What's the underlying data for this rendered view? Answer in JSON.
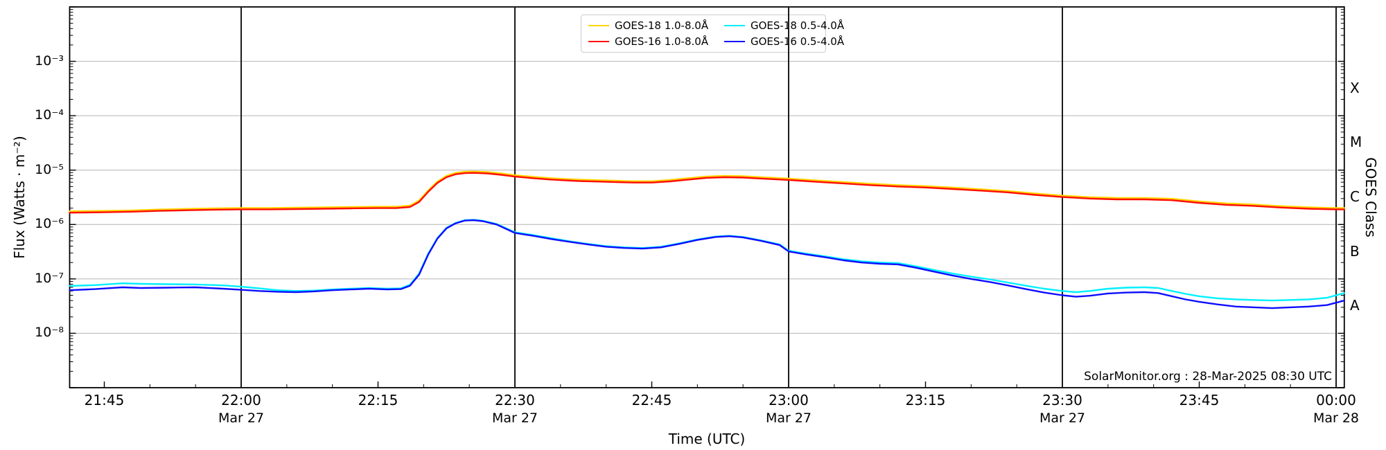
{
  "chart_data": {
    "type": "line",
    "xlabel": "Time (UTC)",
    "ylabel_left": "Flux (Watts · m⁻²)",
    "ylabel_right": "GOES Class",
    "annotation": "SolarMonitor.org : 28-Mar-2025 08:30 UTC",
    "grid": {
      "horizontal": true,
      "vertical_halfhour_lines": true
    },
    "legend_position": "top-center",
    "x_axis_note": "t = minutes relative to 22:00 UTC on Mar 27 2025",
    "xlim_t": [
      -18.8,
      120.9
    ],
    "ylim_log10": [
      -9,
      -2
    ],
    "x_major_ticks": [
      {
        "t": -15,
        "label": "21:45",
        "date": ""
      },
      {
        "t": 0,
        "label": "22:00",
        "date": "Mar 27"
      },
      {
        "t": 15,
        "label": "22:15",
        "date": ""
      },
      {
        "t": 30,
        "label": "22:30",
        "date": "Mar 27"
      },
      {
        "t": 45,
        "label": "22:45",
        "date": ""
      },
      {
        "t": 60,
        "label": "23:00",
        "date": "Mar 27"
      },
      {
        "t": 75,
        "label": "23:15",
        "date": ""
      },
      {
        "t": 90,
        "label": "23:30",
        "date": "Mar 27"
      },
      {
        "t": 105,
        "label": "23:45",
        "date": ""
      },
      {
        "t": 120,
        "label": "00:00",
        "date": "Mar 28"
      }
    ],
    "x_minor_step_min": 5,
    "vlines_t": [
      0,
      30,
      60,
      90,
      120
    ],
    "y_major_ticks": [
      {
        "exp": -3,
        "label": "10⁻³"
      },
      {
        "exp": -4,
        "label": "10⁻⁴"
      },
      {
        "exp": -5,
        "label": "10⁻⁵"
      },
      {
        "exp": -6,
        "label": "10⁻⁶"
      },
      {
        "exp": -7,
        "label": "10⁻⁷"
      },
      {
        "exp": -8,
        "label": "10⁻⁸"
      }
    ],
    "goes_classes": [
      {
        "label": "X",
        "log_flux": -3.5
      },
      {
        "label": "M",
        "log_flux": -4.5
      },
      {
        "label": "C",
        "log_flux": -5.5
      },
      {
        "label": "B",
        "log_flux": -6.5
      },
      {
        "label": "A",
        "log_flux": -7.5
      }
    ],
    "colors": {
      "grid_h": "#b4b4b4",
      "vline": "#1a1a1a",
      "spine": "#000000",
      "legend_border": "#cccccc"
    },
    "series": [
      {
        "name": "GOES-18 1.0-8.0Å",
        "color": "#ffd400",
        "points": [
          [
            -18.8,
            1.75e-06
          ],
          [
            -15,
            1.78e-06
          ],
          [
            -12,
            1.82e-06
          ],
          [
            -9,
            1.89e-06
          ],
          [
            -6,
            1.94e-06
          ],
          [
            -3,
            1.98e-06
          ],
          [
            0,
            2.01e-06
          ],
          [
            3,
            2.01e-06
          ],
          [
            6,
            2.04e-06
          ],
          [
            9,
            2.07e-06
          ],
          [
            12,
            2.1e-06
          ],
          [
            15,
            2.12e-06
          ],
          [
            17,
            2.12e-06
          ],
          [
            18.5,
            2.23e-06
          ],
          [
            19.5,
            2.76e-06
          ],
          [
            20.5,
            4.24e-06
          ],
          [
            21.5,
            6.15e-06
          ],
          [
            22.5,
            7.84e-06
          ],
          [
            23.5,
            8.9e-06
          ],
          [
            24.5,
            9.33e-06
          ],
          [
            25.5,
            9.43e-06
          ],
          [
            27,
            9.22e-06
          ],
          [
            28.5,
            8.69e-06
          ],
          [
            30,
            8.06e-06
          ],
          [
            32,
            7.53e-06
          ],
          [
            34,
            7.1e-06
          ],
          [
            37,
            6.68e-06
          ],
          [
            40,
            6.47e-06
          ],
          [
            43,
            6.25e-06
          ],
          [
            45,
            6.25e-06
          ],
          [
            47,
            6.57e-06
          ],
          [
            49,
            7.1e-06
          ],
          [
            51,
            7.63e-06
          ],
          [
            53,
            7.84e-06
          ],
          [
            55,
            7.74e-06
          ],
          [
            57,
            7.42e-06
          ],
          [
            60,
            7e-06
          ],
          [
            63,
            6.47e-06
          ],
          [
            66,
            6.04e-06
          ],
          [
            69,
            5.62e-06
          ],
          [
            72,
            5.3e-06
          ],
          [
            75,
            5.09e-06
          ],
          [
            78,
            4.77e-06
          ],
          [
            81,
            4.45e-06
          ],
          [
            84,
            4.13e-06
          ],
          [
            87,
            3.71e-06
          ],
          [
            90,
            3.39e-06
          ],
          [
            93,
            3.18e-06
          ],
          [
            96,
            3.07e-06
          ],
          [
            99,
            3.07e-06
          ],
          [
            102,
            2.97e-06
          ],
          [
            105,
            2.65e-06
          ],
          [
            108,
            2.44e-06
          ],
          [
            111,
            2.33e-06
          ],
          [
            114,
            2.17e-06
          ],
          [
            117,
            2.07e-06
          ],
          [
            120,
            2.01e-06
          ],
          [
            120.9,
            2.01e-06
          ]
        ]
      },
      {
        "name": "GOES-16 1.0-8.0Å",
        "color": "#ff0d00",
        "points": [
          [
            -18.8,
            1.65e-06
          ],
          [
            -15,
            1.68e-06
          ],
          [
            -12,
            1.72e-06
          ],
          [
            -9,
            1.78e-06
          ],
          [
            -6,
            1.83e-06
          ],
          [
            -3,
            1.87e-06
          ],
          [
            0,
            1.9e-06
          ],
          [
            3,
            1.9e-06
          ],
          [
            6,
            1.92e-06
          ],
          [
            9,
            1.95e-06
          ],
          [
            12,
            1.98e-06
          ],
          [
            15,
            2e-06
          ],
          [
            17,
            2e-06
          ],
          [
            18.5,
            2.1e-06
          ],
          [
            19.5,
            2.6e-06
          ],
          [
            20.5,
            4e-06
          ],
          [
            21.5,
            5.8e-06
          ],
          [
            22.5,
            7.4e-06
          ],
          [
            23.5,
            8.4e-06
          ],
          [
            24.5,
            8.8e-06
          ],
          [
            25.5,
            8.9e-06
          ],
          [
            27,
            8.7e-06
          ],
          [
            28.5,
            8.2e-06
          ],
          [
            30,
            7.6e-06
          ],
          [
            32,
            7.1e-06
          ],
          [
            34,
            6.7e-06
          ],
          [
            37,
            6.3e-06
          ],
          [
            40,
            6.1e-06
          ],
          [
            43,
            5.9e-06
          ],
          [
            45,
            5.9e-06
          ],
          [
            47,
            6.2e-06
          ],
          [
            49,
            6.7e-06
          ],
          [
            51,
            7.2e-06
          ],
          [
            53,
            7.4e-06
          ],
          [
            55,
            7.3e-06
          ],
          [
            57,
            7e-06
          ],
          [
            60,
            6.6e-06
          ],
          [
            63,
            6.1e-06
          ],
          [
            66,
            5.7e-06
          ],
          [
            69,
            5.3e-06
          ],
          [
            72,
            5e-06
          ],
          [
            75,
            4.8e-06
          ],
          [
            78,
            4.5e-06
          ],
          [
            81,
            4.2e-06
          ],
          [
            84,
            3.9e-06
          ],
          [
            87,
            3.5e-06
          ],
          [
            90,
            3.2e-06
          ],
          [
            93,
            3e-06
          ],
          [
            96,
            2.9e-06
          ],
          [
            99,
            2.9e-06
          ],
          [
            102,
            2.8e-06
          ],
          [
            105,
            2.5e-06
          ],
          [
            108,
            2.3e-06
          ],
          [
            111,
            2.2e-06
          ],
          [
            114,
            2.05e-06
          ],
          [
            117,
            1.95e-06
          ],
          [
            120,
            1.9e-06
          ],
          [
            120.9,
            1.9e-06
          ]
        ]
      },
      {
        "name": "GOES-18 0.5-4.0Å",
        "color": "#00f0ff",
        "points": [
          [
            -18.8,
            7.4e-08
          ],
          [
            -16,
            7.7e-08
          ],
          [
            -13,
            8.3e-08
          ],
          [
            -11,
            8.1e-08
          ],
          [
            -8,
            8e-08
          ],
          [
            -5,
            7.9e-08
          ],
          [
            -2,
            7.6e-08
          ],
          [
            0,
            7.2e-08
          ],
          [
            2,
            6.7e-08
          ],
          [
            4,
            6.2e-08
          ],
          [
            6,
            6e-08
          ],
          [
            8,
            6.1e-08
          ],
          [
            10,
            6.4e-08
          ],
          [
            12,
            6.6e-08
          ],
          [
            14,
            6.8e-08
          ],
          [
            16,
            6.6e-08
          ],
          [
            17.5,
            6.7e-08
          ],
          [
            18.5,
            7.8e-08
          ],
          [
            19.5,
            1.25e-07
          ],
          [
            20.5,
            2.9e-07
          ],
          [
            21.5,
            5.6e-07
          ],
          [
            22.5,
            8.7e-07
          ],
          [
            23.5,
            1.07e-06
          ],
          [
            24.5,
            1.2e-06
          ],
          [
            25.5,
            1.22e-06
          ],
          [
            26.5,
            1.17e-06
          ],
          [
            28,
            1.02e-06
          ],
          [
            30,
            7.2e-07
          ],
          [
            32,
            6.4e-07
          ],
          [
            34,
            5.6e-07
          ],
          [
            36,
            4.9e-07
          ],
          [
            38,
            4.4e-07
          ],
          [
            40,
            4e-07
          ],
          [
            42,
            3.8e-07
          ],
          [
            44,
            3.7e-07
          ],
          [
            46,
            3.9e-07
          ],
          [
            48,
            4.5e-07
          ],
          [
            50,
            5.3e-07
          ],
          [
            52,
            6e-07
          ],
          [
            53.5,
            6.2e-07
          ],
          [
            55,
            5.9e-07
          ],
          [
            57,
            5.1e-07
          ],
          [
            59,
            4.3e-07
          ],
          [
            60,
            3.3e-07
          ],
          [
            62,
            2.9e-07
          ],
          [
            64,
            2.6e-07
          ],
          [
            66,
            2.3e-07
          ],
          [
            68,
            2.1e-07
          ],
          [
            70,
            2e-07
          ],
          [
            72,
            1.95e-07
          ],
          [
            74,
            1.7e-07
          ],
          [
            76,
            1.45e-07
          ],
          [
            78,
            1.25e-07
          ],
          [
            80,
            1.1e-07
          ],
          [
            82,
            9.8e-08
          ],
          [
            84,
            8.6e-08
          ],
          [
            86,
            7.5e-08
          ],
          [
            88,
            6.6e-08
          ],
          [
            90,
            6e-08
          ],
          [
            91.5,
            5.7e-08
          ],
          [
            93,
            6e-08
          ],
          [
            95,
            6.6e-08
          ],
          [
            97,
            6.9e-08
          ],
          [
            99,
            7e-08
          ],
          [
            100.5,
            6.8e-08
          ],
          [
            102,
            6e-08
          ],
          [
            103.5,
            5.3e-08
          ],
          [
            105,
            4.8e-08
          ],
          [
            107,
            4.4e-08
          ],
          [
            109,
            4.2e-08
          ],
          [
            111,
            4.1e-08
          ],
          [
            113,
            4e-08
          ],
          [
            115,
            4.1e-08
          ],
          [
            117,
            4.2e-08
          ],
          [
            119,
            4.5e-08
          ],
          [
            120.9,
            5.5e-08
          ]
        ]
      },
      {
        "name": "GOES-16 0.5-4.0Å",
        "color": "#0d0dff",
        "points": [
          [
            -18.8,
            6.2e-08
          ],
          [
            -16,
            6.5e-08
          ],
          [
            -13,
            7e-08
          ],
          [
            -11,
            6.8e-08
          ],
          [
            -8,
            6.9e-08
          ],
          [
            -5,
            7e-08
          ],
          [
            -2,
            6.6e-08
          ],
          [
            0,
            6.3e-08
          ],
          [
            2,
            6e-08
          ],
          [
            4,
            5.8e-08
          ],
          [
            6,
            5.7e-08
          ],
          [
            8,
            5.9e-08
          ],
          [
            10,
            6.2e-08
          ],
          [
            12,
            6.4e-08
          ],
          [
            14,
            6.6e-08
          ],
          [
            16,
            6.4e-08
          ],
          [
            17.5,
            6.5e-08
          ],
          [
            18.5,
            7.5e-08
          ],
          [
            19.5,
            1.2e-07
          ],
          [
            20.5,
            2.8e-07
          ],
          [
            21.5,
            5.5e-07
          ],
          [
            22.5,
            8.5e-07
          ],
          [
            23.5,
            1.05e-06
          ],
          [
            24.5,
            1.18e-06
          ],
          [
            25.5,
            1.2e-06
          ],
          [
            26.5,
            1.15e-06
          ],
          [
            28,
            1e-06
          ],
          [
            30,
            7e-07
          ],
          [
            32,
            6.2e-07
          ],
          [
            34,
            5.4e-07
          ],
          [
            36,
            4.8e-07
          ],
          [
            38,
            4.3e-07
          ],
          [
            40,
            3.9e-07
          ],
          [
            42,
            3.7e-07
          ],
          [
            44,
            3.6e-07
          ],
          [
            46,
            3.8e-07
          ],
          [
            48,
            4.4e-07
          ],
          [
            50,
            5.2e-07
          ],
          [
            52,
            5.9e-07
          ],
          [
            53.5,
            6.1e-07
          ],
          [
            55,
            5.8e-07
          ],
          [
            57,
            5e-07
          ],
          [
            59,
            4.2e-07
          ],
          [
            60,
            3.2e-07
          ],
          [
            62,
            2.8e-07
          ],
          [
            64,
            2.5e-07
          ],
          [
            66,
            2.2e-07
          ],
          [
            68,
            2e-07
          ],
          [
            70,
            1.9e-07
          ],
          [
            72,
            1.85e-07
          ],
          [
            74,
            1.6e-07
          ],
          [
            76,
            1.35e-07
          ],
          [
            78,
            1.15e-07
          ],
          [
            80,
            1e-07
          ],
          [
            82,
            8.8e-08
          ],
          [
            84,
            7.6e-08
          ],
          [
            86,
            6.5e-08
          ],
          [
            88,
            5.6e-08
          ],
          [
            90,
            5e-08
          ],
          [
            91.5,
            4.7e-08
          ],
          [
            93,
            4.9e-08
          ],
          [
            95,
            5.4e-08
          ],
          [
            97,
            5.6e-08
          ],
          [
            99,
            5.7e-08
          ],
          [
            100.5,
            5.5e-08
          ],
          [
            102,
            4.8e-08
          ],
          [
            103.5,
            4.2e-08
          ],
          [
            105,
            3.8e-08
          ],
          [
            107,
            3.4e-08
          ],
          [
            109,
            3.1e-08
          ],
          [
            111,
            3e-08
          ],
          [
            113,
            2.9e-08
          ],
          [
            115,
            3e-08
          ],
          [
            117,
            3.1e-08
          ],
          [
            119,
            3.3e-08
          ],
          [
            120.9,
            4e-08
          ]
        ]
      }
    ]
  }
}
